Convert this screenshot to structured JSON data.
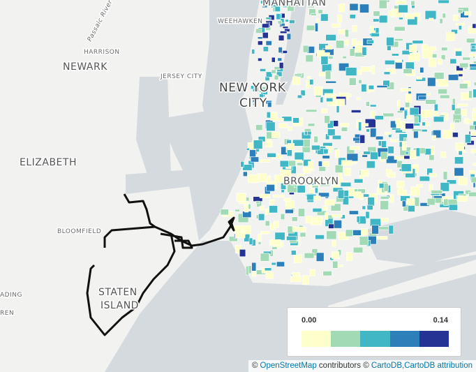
{
  "map": {
    "labels": {
      "manhattan": "MANHATTAN",
      "weehawken": "WEEHAWKEN",
      "passaic_river": "Passaic River",
      "harrison": "HARRISON",
      "newark": "NEWARK",
      "jersey_city": "JERSEY CITY",
      "new_york_city_1": "NEW YORK",
      "new_york_city_2": "CITY",
      "elizabeth": "ELIZABETH",
      "brooklyn": "BROOKLYN",
      "bloomfield": "BLOOMFIELD",
      "staten_island_1": "STATEN",
      "staten_island_2": "ISLAND",
      "reading": "ADING",
      "warren": "REN"
    },
    "legend": {
      "min_label": "0.00",
      "max_label": "0.14",
      "colors": [
        "#ffffcc",
        "#a1dab4",
        "#41b6c4",
        "#2c7fb8",
        "#253494"
      ]
    },
    "attribution": {
      "copy1": "©",
      "osm": "OpenStreetMap",
      "contributors": "contributors ©",
      "cartodb": "CartoDB,CartoDB",
      "attribution": "attribution"
    }
  }
}
